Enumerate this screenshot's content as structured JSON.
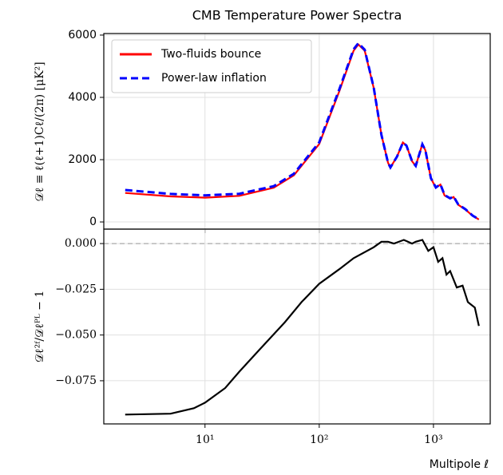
{
  "chart_data": [
    {
      "type": "line",
      "title": "CMB Temperature Power Spectra",
      "y_label": "𝒟ℓ ≡ ℓ(ℓ+1)Cℓ/(2π) [μK²]",
      "log_x": true,
      "grid": true,
      "legend": "upper left",
      "x": [
        2,
        5,
        10,
        20,
        40,
        60,
        100,
        150,
        200,
        220,
        250,
        300,
        350,
        400,
        420,
        480,
        540,
        580,
        650,
        700,
        800,
        850,
        950,
        1050,
        1150,
        1250,
        1400,
        1500,
        1650,
        1900,
        2200,
        2500
      ],
      "series": [
        {
          "name": "Two-fluids bounce",
          "color": "#ff0000",
          "dash": false,
          "values": [
            930,
            820,
            780,
            840,
            1100,
            1500,
            2500,
            4200,
            5500,
            5700,
            5500,
            4300,
            2800,
            1900,
            1750,
            2100,
            2550,
            2450,
            1950,
            1800,
            2500,
            2300,
            1400,
            1100,
            1200,
            850,
            750,
            800,
            550,
            400,
            200,
            80
          ]
        },
        {
          "name": "Power-law inflation",
          "color": "#0000ff",
          "dash": true,
          "values": [
            1025,
            900,
            855,
            905,
            1150,
            1550,
            2555,
            4260,
            5545,
            5740,
            5530,
            4310,
            2800,
            1900,
            1750,
            2100,
            2545,
            2450,
            1950,
            1800,
            2495,
            2300,
            1405,
            1105,
            1210,
            865,
            760,
            815,
            560,
            410,
            205,
            85
          ]
        }
      ],
      "xlim": [
        1.3,
        3140
      ],
      "xticks": [
        10,
        100,
        1000
      ],
      "ylim": [
        -230,
        6050
      ],
      "yticks": [
        0,
        2000,
        4000,
        6000
      ]
    },
    {
      "type": "line",
      "x_label": "Multipole ℓ",
      "y_label": "𝒟ℓ²ᶠ/𝒟ℓᴾᴸ − 1",
      "log_x": true,
      "grid": true,
      "hline": 0,
      "x": [
        2,
        5,
        8,
        10,
        15,
        20,
        30,
        50,
        70,
        100,
        150,
        200,
        300,
        350,
        400,
        450,
        550,
        650,
        700,
        800,
        900,
        1000,
        1100,
        1200,
        1300,
        1400,
        1600,
        1800,
        2000,
        2300,
        2500
      ],
      "series": [
        {
          "color": "#000000",
          "dash": false,
          "values": [
            -0.0935,
            -0.093,
            -0.09,
            -0.087,
            -0.079,
            -0.07,
            -0.058,
            -0.043,
            -0.032,
            -0.022,
            -0.014,
            -0.008,
            -0.002,
            0.001,
            0.001,
            0,
            0.002,
            0,
            0.001,
            0.002,
            -0.004,
            -0.002,
            -0.01,
            -0.008,
            -0.017,
            -0.015,
            -0.024,
            -0.023,
            -0.032,
            -0.035,
            -0.045
          ]
        }
      ],
      "xlim": [
        1.3,
        3140
      ],
      "xticks": [
        {
          "value": 10,
          "label": "10¹"
        },
        {
          "value": 100,
          "label": "10²"
        },
        {
          "value": 1000,
          "label": "10³"
        }
      ],
      "ylim": [
        -0.0986,
        0.0079
      ],
      "yticks": [
        {
          "value": -0.075,
          "label": "−0.075"
        },
        {
          "value": -0.05,
          "label": "−0.050"
        },
        {
          "value": -0.025,
          "label": "−0.025"
        },
        {
          "value": 0,
          "label": "0.000"
        }
      ]
    }
  ]
}
